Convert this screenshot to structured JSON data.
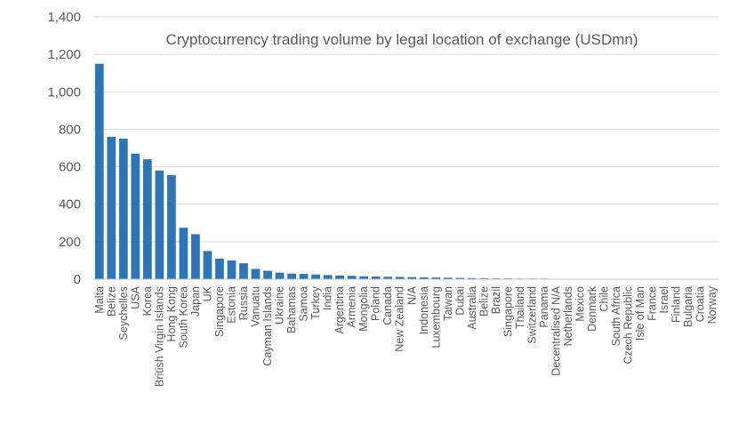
{
  "chart_data": {
    "type": "bar",
    "title": "Cryptocurrency trading volume by legal location of exchange (USDmn)",
    "xlabel": "",
    "ylabel": "",
    "ylim": [
      0,
      1400
    ],
    "yticks": [
      "0",
      "200",
      "400",
      "600",
      "800",
      "1,000",
      "1,200",
      "1,400"
    ],
    "grid": true,
    "bar_color": "#2e75b6",
    "categories": [
      "Malta",
      "Belize",
      "Seychelles",
      "USA",
      "Korea",
      "British Virgin Islands",
      "Hong Kong",
      "South Korea",
      "Japan",
      "UK",
      "Singapore",
      "Estonia",
      "Russia",
      "Vanuatu",
      "Cayman Islands",
      "Ukraine",
      "Bahamas",
      "Samoa",
      "Turkey",
      "India",
      "Argentina",
      "Armenia",
      "Mongolia",
      "Poland",
      "Canada",
      "New Zealand",
      "N/A",
      "Indonesia",
      "Luxembourg",
      "Taiwan",
      "Dubai",
      "Australia",
      "Belize",
      "Brazil",
      "Singapore",
      "Thailand",
      "Switzerland",
      "Panama",
      "Decentralised N/A",
      "Netherlands",
      "Mexico",
      "Denmark",
      "Chile",
      "South Africa",
      "Czech Republic",
      "Isle of Man",
      "France",
      "Israel",
      "Finland",
      "Bulgaria",
      "Croatia",
      "Norway"
    ],
    "values": [
      1150,
      760,
      750,
      670,
      640,
      580,
      555,
      275,
      240,
      150,
      110,
      100,
      85,
      55,
      45,
      35,
      30,
      28,
      25,
      22,
      20,
      18,
      15,
      14,
      13,
      12,
      11,
      10,
      9,
      8,
      7,
      6,
      5,
      4,
      4,
      3,
      3,
      3,
      2,
      2,
      2,
      2,
      1,
      1,
      1,
      1,
      1,
      1,
      1,
      1,
      1,
      1
    ]
  }
}
